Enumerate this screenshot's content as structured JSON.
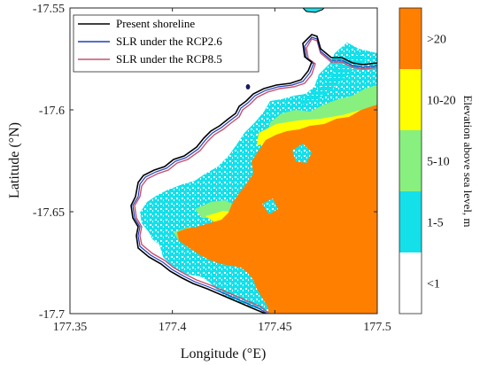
{
  "map": {
    "x_axis": {
      "label": "Longitude (°E)",
      "ticks": [
        "177.35",
        "177.4",
        "177.45",
        "177.5"
      ],
      "range": [
        177.35,
        177.5
      ]
    },
    "y_axis": {
      "label": "Latitude (°N)",
      "ticks": [
        "-17.55",
        "-17.6",
        "-17.65",
        "-17.7"
      ],
      "range": [
        -17.7,
        -17.55
      ]
    },
    "legend": {
      "position": "top-left",
      "items": [
        {
          "label": "Present shoreline",
          "color": "#000000"
        },
        {
          "label": "SLR under the RCP2.6",
          "color": "#1f3fbf"
        },
        {
          "label": "SLR under the RCP8.5",
          "color": "#c8506e"
        }
      ]
    },
    "colorbar": {
      "title": "Elevation above sea level, m",
      "classes": [
        {
          "label": "<1",
          "color": "#ffffff"
        },
        {
          "label": "1-5",
          "color": "#14e0ea"
        },
        {
          "label": "5-10",
          "color": "#88f07e"
        },
        {
          "label": "10-20",
          "color": "#ffff00"
        },
        {
          "label": ">20",
          "color": "#ff8000"
        }
      ]
    }
  }
}
